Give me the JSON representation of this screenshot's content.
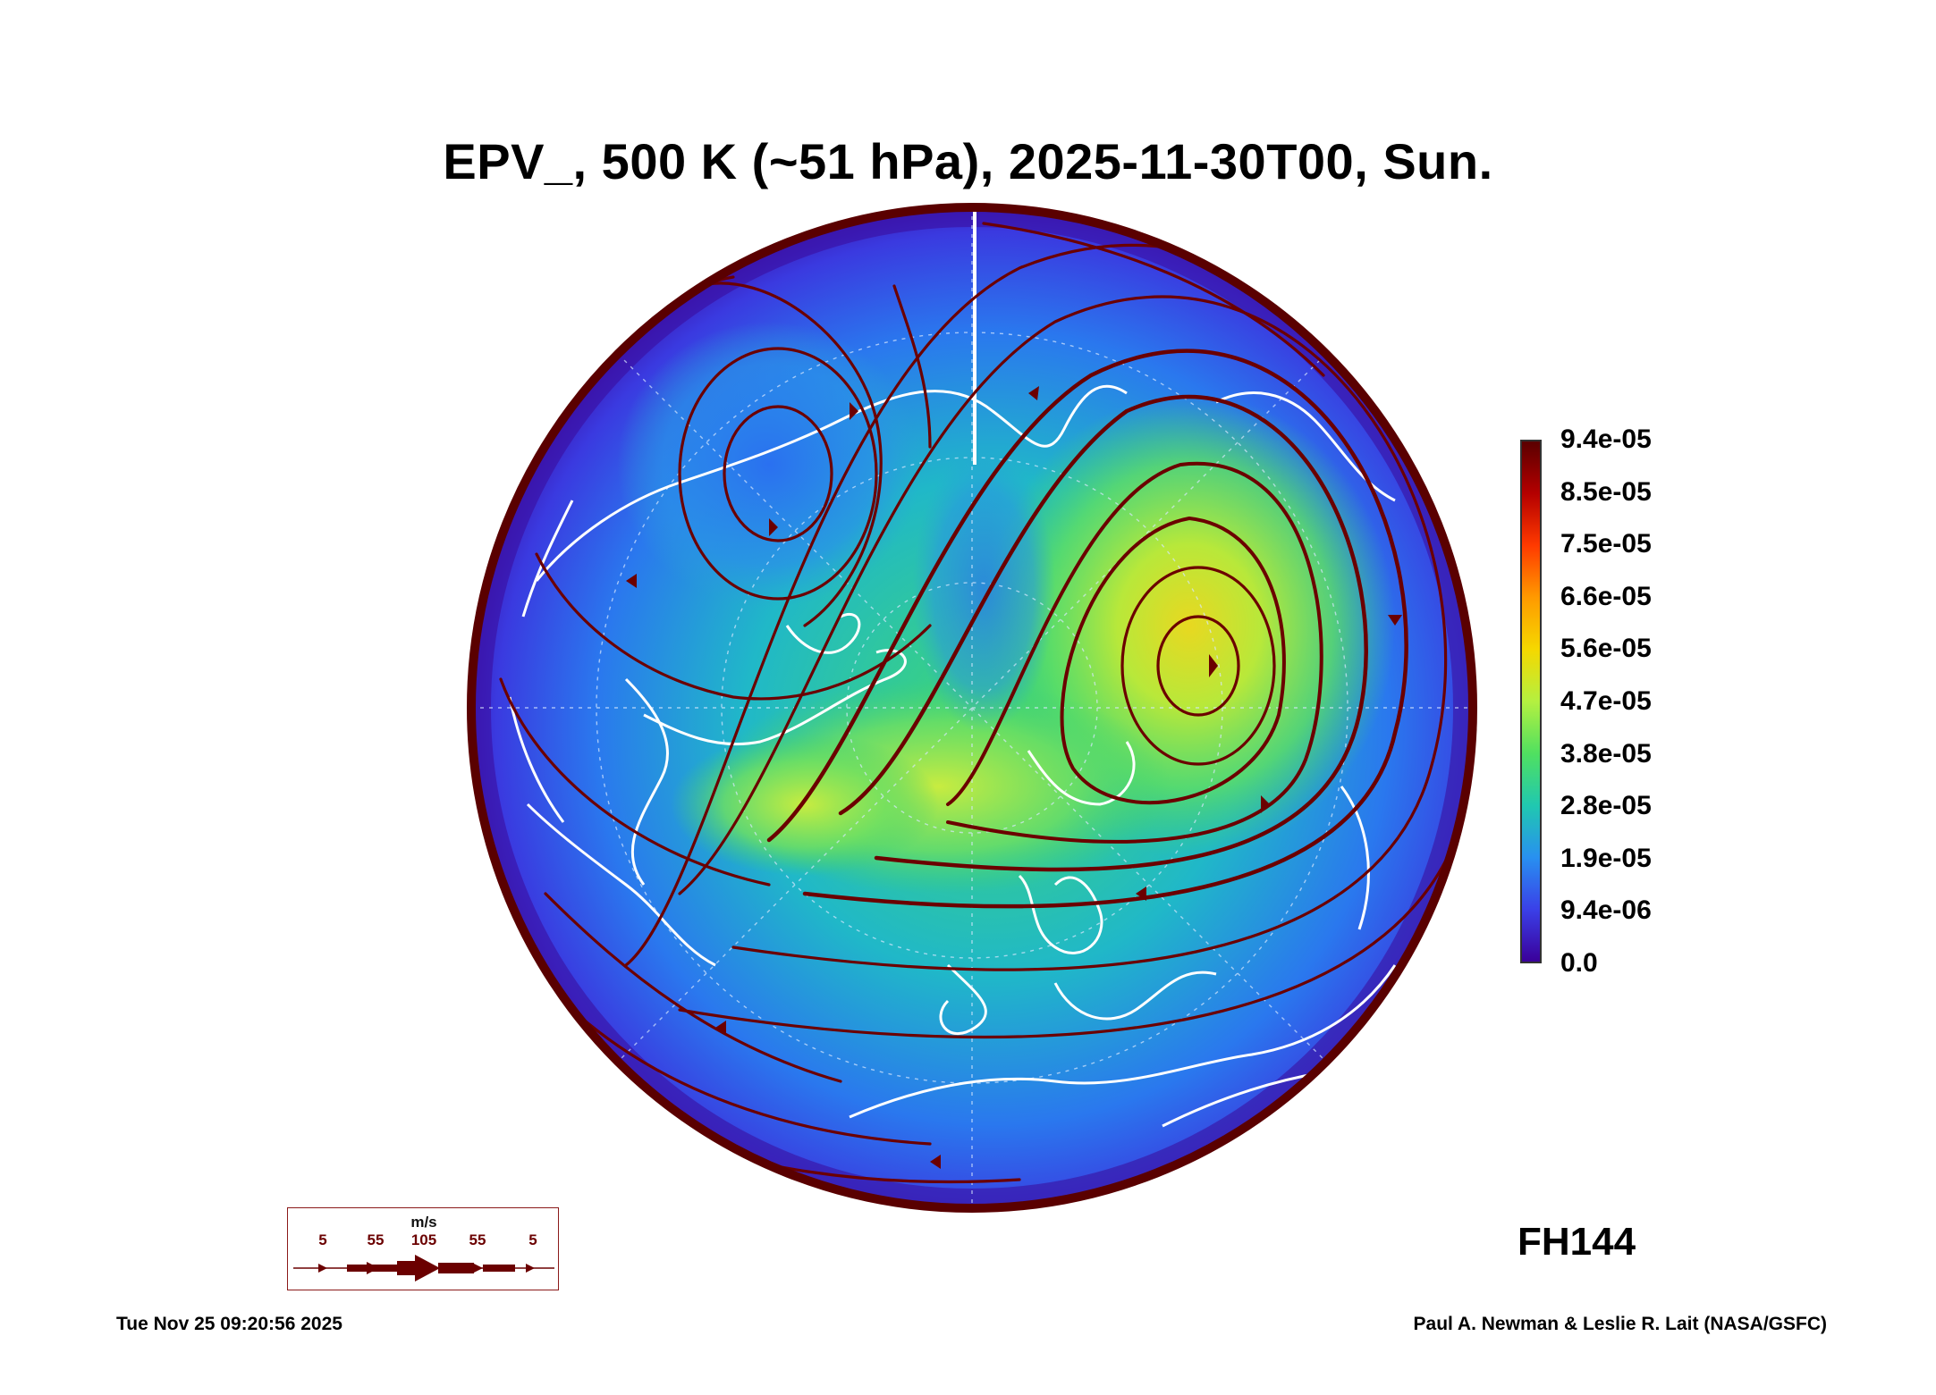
{
  "header": {
    "title": "EPV_, 500 K (~51 hPa), 2025-11-30T00, Sun."
  },
  "colorbar": {
    "labels": [
      "9.4e-05",
      "8.5e-05",
      "7.5e-05",
      "6.6e-05",
      "5.6e-05",
      "4.7e-05",
      "3.8e-05",
      "2.8e-05",
      "1.9e-05",
      "9.4e-06",
      "0.0"
    ],
    "colors_top_to_bottom": [
      "#5a0000",
      "#b40000",
      "#ff3a00",
      "#ff9a00",
      "#f5d800",
      "#b4f040",
      "#50e060",
      "#20c8b0",
      "#2890f0",
      "#3a40e8",
      "#3a009a"
    ]
  },
  "wind_legend": {
    "unit": "m/s",
    "values": [
      "5",
      "55",
      "105",
      "55",
      "5"
    ],
    "color": "#6b0000"
  },
  "forecast_hour": "FH144",
  "footer": {
    "timestamp": "Tue Nov 25 09:20:56 2025",
    "credit": "Paul A. Newman & Leslie R. Lait (NASA/GSFC)"
  },
  "map": {
    "projection": "north-polar-stereographic",
    "streamline_color": "#6b0000",
    "coastline_color": "#ffffff"
  }
}
